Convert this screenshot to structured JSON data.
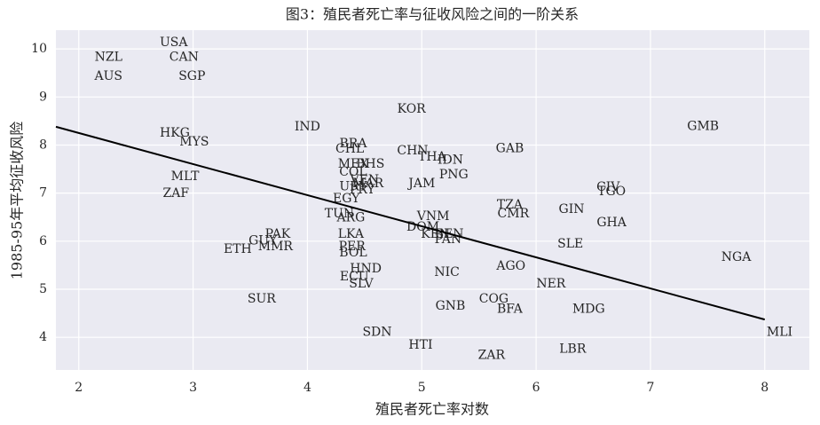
{
  "chart_data": {
    "type": "scatter",
    "title": "图3：殖民者死亡率与征收风险之间的一阶关系",
    "xlabel": "殖民者死亡率对数",
    "ylabel": "1985-95年平均征收风险",
    "labels": [
      "USA",
      "NZL",
      "CAN",
      "AUS",
      "SGP",
      "KOR",
      "IND",
      "GMB",
      "HKG",
      "MYS",
      "BRA",
      "CHL",
      "CHN",
      "GAB",
      "THA",
      "IDN",
      "MEX",
      "BHS",
      "COL",
      "VEN",
      "MAR",
      "URY",
      "PRY",
      "PNG",
      "JAM",
      "MLT",
      "ZAF",
      "CIV",
      "TGO",
      "EGY",
      "TZA",
      "TUN",
      "ARG",
      "CMR",
      "GIN",
      "VNM",
      "GHA",
      "DOM",
      "KEN",
      "BEN",
      "PAN",
      "LKA",
      "PAK",
      "GUY",
      "MMR",
      "ETH",
      "SLE",
      "PER",
      "BOL",
      "NGA",
      "AGO",
      "HND",
      "NIC",
      "ECU",
      "SLV",
      "NER",
      "SUR",
      "COG",
      "GNB",
      "BFA",
      "MDG",
      "MLI",
      "SDN",
      "HTI",
      "LBR",
      "ZAR"
    ],
    "x": [
      2.83,
      2.26,
      2.92,
      2.26,
      2.99,
      4.91,
      4.0,
      7.46,
      2.84,
      3.01,
      4.4,
      4.37,
      4.92,
      5.77,
      5.09,
      5.25,
      4.4,
      4.55,
      4.4,
      4.5,
      4.53,
      4.4,
      4.48,
      5.28,
      5.0,
      2.93,
      2.85,
      6.63,
      6.66,
      4.34,
      5.77,
      4.28,
      4.38,
      5.8,
      6.31,
      5.1,
      6.66,
      5.01,
      5.12,
      5.24,
      5.23,
      4.38,
      3.74,
      3.61,
      3.72,
      3.39,
      6.3,
      4.39,
      4.4,
      7.75,
      5.78,
      4.51,
      5.22,
      4.41,
      4.47,
      6.13,
      3.6,
      5.63,
      5.25,
      5.77,
      6.46,
      8.13,
      4.61,
      4.99,
      6.32,
      5.61
    ],
    "y": [
      10.13,
      9.83,
      9.83,
      9.43,
      9.43,
      8.75,
      8.38,
      8.39,
      8.25,
      8.06,
      8.03,
      7.92,
      7.88,
      7.93,
      7.75,
      7.69,
      7.6,
      7.6,
      7.44,
      7.27,
      7.2,
      7.13,
      7.07,
      7.38,
      7.2,
      7.34,
      6.99,
      7.12,
      7.03,
      6.88,
      6.75,
      6.57,
      6.49,
      6.57,
      6.66,
      6.51,
      6.38,
      6.29,
      6.14,
      6.14,
      6.03,
      6.14,
      6.14,
      6.01,
      5.89,
      5.83,
      5.94,
      5.89,
      5.76,
      5.66,
      5.48,
      5.42,
      5.35,
      5.26,
      5.11,
      5.11,
      4.8,
      4.8,
      4.65,
      4.58,
      4.58,
      4.1,
      4.1,
      3.84,
      3.75,
      3.62
    ],
    "fit_line": {
      "x": [
        1.8,
        8.0
      ],
      "y": [
        8.38,
        4.37
      ],
      "color": "#000000"
    },
    "xlim": [
      1.8,
      8.39
    ],
    "ylim": [
      3.32,
      10.39
    ],
    "xticks": [
      2,
      3,
      4,
      5,
      6,
      7,
      8
    ],
    "yticks": [
      4,
      5,
      6,
      7,
      8,
      9,
      10
    ],
    "grid": true
  }
}
